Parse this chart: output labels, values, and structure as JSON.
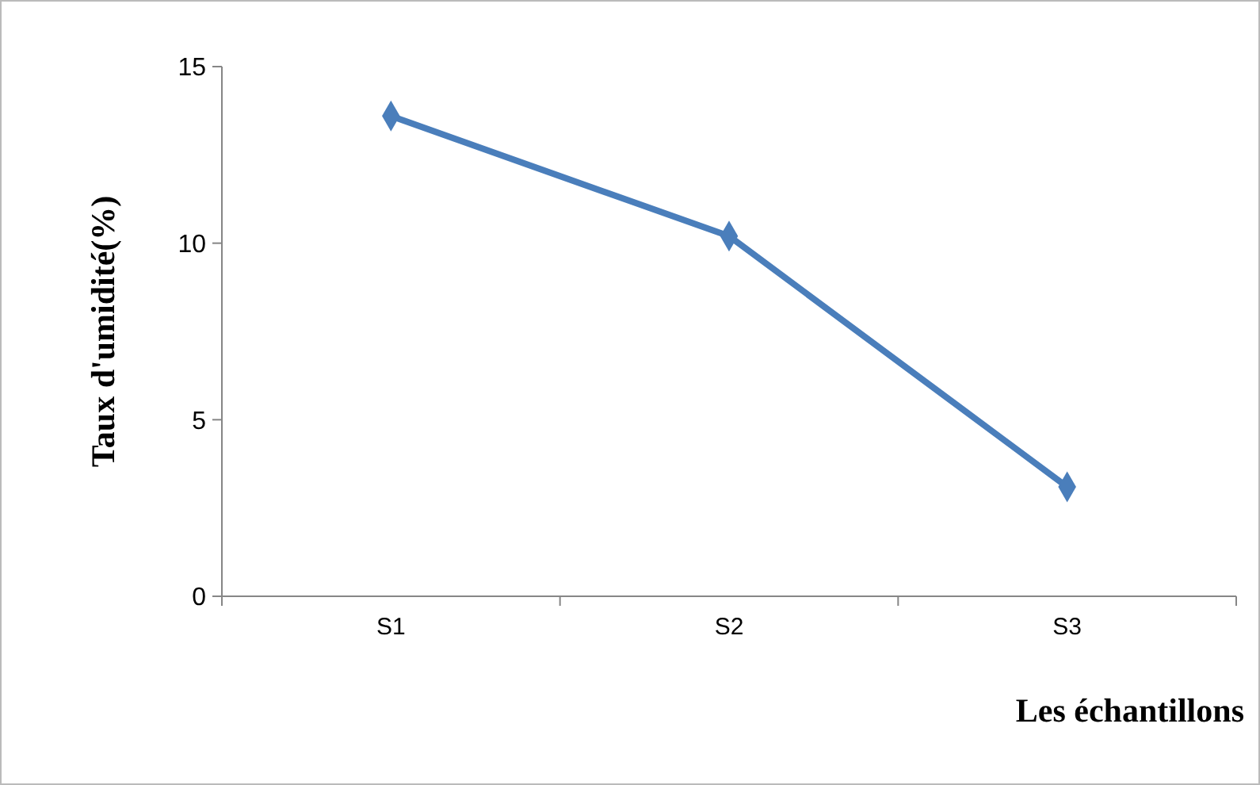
{
  "chart_data": {
    "type": "line",
    "xlabel": "Les échantillons",
    "ylabel": "Taux d'umidité(%)",
    "categories": [
      "S1",
      "S2",
      "S3"
    ],
    "series": [
      {
        "color": "#4a7ebb",
        "values": [
          13.6,
          10.2,
          3.1
        ]
      }
    ],
    "ylim": [
      0,
      15
    ],
    "yticks": [
      0,
      5,
      10,
      15
    ],
    "marker": "diamond",
    "grid": false
  }
}
